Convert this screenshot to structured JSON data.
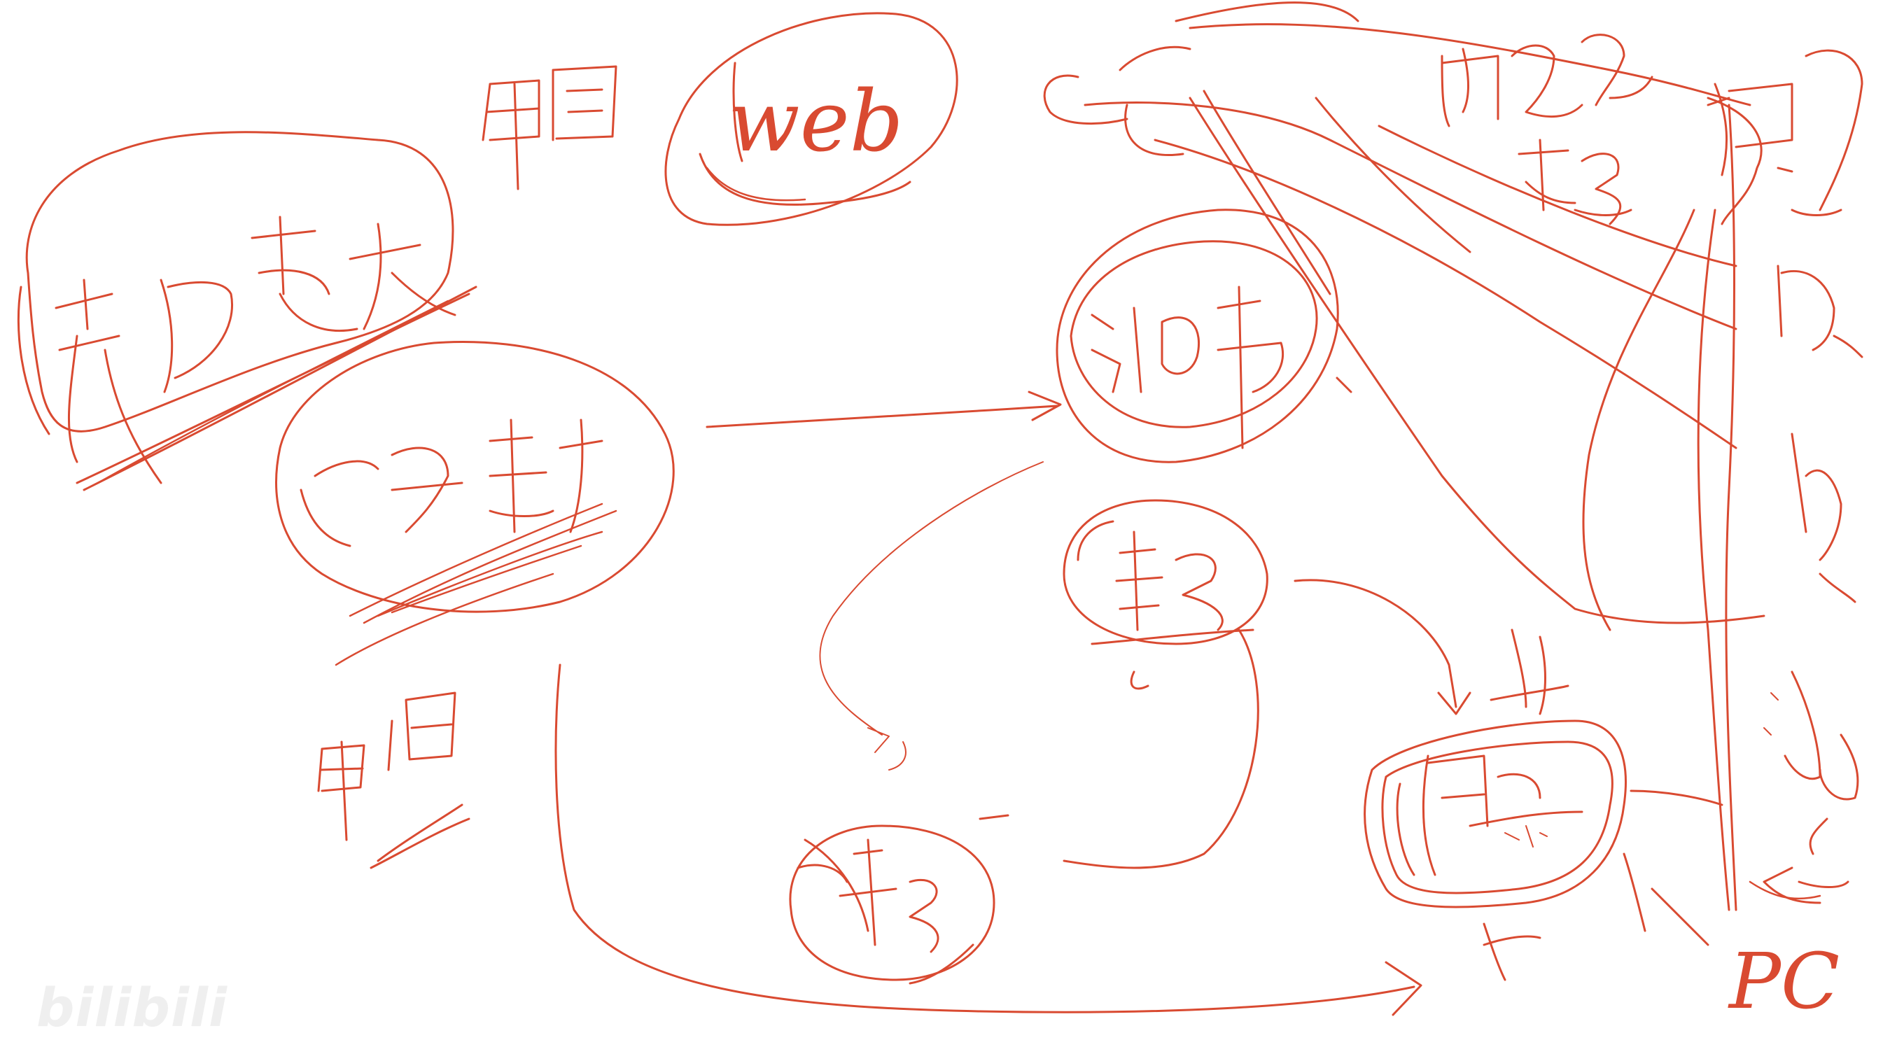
{
  "canvas": {
    "background": "#ffffff",
    "ink_color": "#d94a31"
  },
  "labels": {
    "web": "web",
    "pc": "PC"
  },
  "watermark": {
    "logo_text": "bilibili",
    "caption": "",
    "color": "#e3e3e3"
  }
}
